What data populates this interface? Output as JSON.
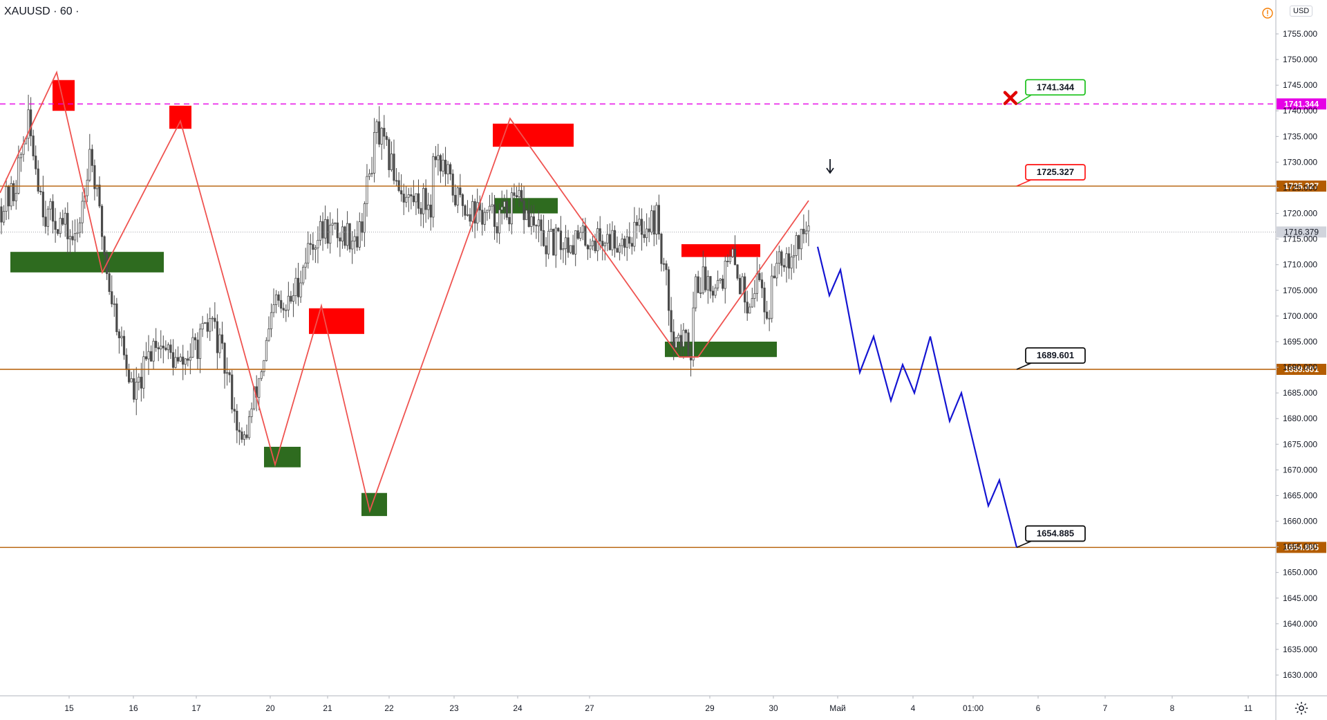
{
  "symbol": "XAUUSD · 60 ·",
  "currency": "USD",
  "colors": {
    "candle": "#4a4a4a",
    "zigzag": "#ef5350",
    "supply": "#ff0000",
    "demand": "#2e6b1f",
    "projection": "#1414d2",
    "level": "#b35c00",
    "resistance_dash": "#e600e6",
    "label_green": "#22c322",
    "label_red": "#ff1f1f",
    "label_black": "#111111"
  },
  "icons": {
    "settings": "gear-icon",
    "alert": "warning-icon",
    "invalidation": "cross-icon",
    "pointer": "arrow-down-icon"
  },
  "chart_data": {
    "type": "candlestick",
    "symbol": "XAUUSD",
    "timeframe": "60",
    "ylim": [
      1626,
      1759
    ],
    "y_ticks": [
      1630,
      1635,
      1640,
      1645,
      1650,
      1655,
      1660,
      1665,
      1670,
      1675,
      1680,
      1685,
      1690,
      1695,
      1700,
      1705,
      1710,
      1715,
      1720,
      1725,
      1730,
      1735,
      1740,
      1745,
      1750,
      1755
    ],
    "x_tick_labels": [
      "15",
      "16",
      "17",
      "20",
      "21",
      "22",
      "23",
      "24",
      "27",
      "29",
      "30",
      "Май",
      "4",
      "01:00",
      "6",
      "7",
      "8",
      "11"
    ],
    "last_price": "1716.379",
    "levels": [
      {
        "value": 1741.344,
        "label": "1741.344",
        "style": "dashed",
        "color": "#e600e6"
      },
      {
        "value": 1725.327,
        "label": "1725.327",
        "style": "solid",
        "color": "#b35c00"
      },
      {
        "value": 1689.601,
        "label": "1689.601",
        "style": "solid",
        "color": "#b35c00"
      },
      {
        "value": 1654.885,
        "label": "1654.885",
        "style": "solid",
        "color": "#b35c00"
      }
    ],
    "callouts": [
      {
        "text": "1741.344",
        "value": 1741.344,
        "color": "#22c322"
      },
      {
        "text": "1725.327",
        "value": 1725.327,
        "color": "#ff1f1f"
      },
      {
        "text": "1689.601",
        "value": 1689.601,
        "color": "#111111"
      },
      {
        "text": "1654.885",
        "value": 1654.885,
        "color": "#111111"
      }
    ],
    "zigzag": [
      [
        0,
        1724
      ],
      [
        82,
        1747.5
      ],
      [
        148,
        1708.5
      ],
      [
        261,
        1738
      ],
      [
        398,
        1671
      ],
      [
        465,
        1702
      ],
      [
        535,
        1662
      ],
      [
        738,
        1738.5
      ],
      [
        983,
        1692
      ],
      [
        1010,
        1692
      ],
      [
        1170,
        1722.5
      ]
    ],
    "projection": [
      [
        1183,
        1713.5
      ],
      [
        1200,
        1704
      ],
      [
        1216,
        1709
      ],
      [
        1244,
        1689
      ],
      [
        1264,
        1696
      ],
      [
        1289,
        1683.5
      ],
      [
        1306,
        1690.5
      ],
      [
        1323,
        1685
      ],
      [
        1346,
        1696
      ],
      [
        1374,
        1679.5
      ],
      [
        1391,
        1685
      ],
      [
        1430,
        1663
      ],
      [
        1446,
        1668
      ],
      [
        1471,
        1654.9
      ]
    ],
    "supply_zones": [
      [
        76,
        1746,
        108,
        1740
      ],
      [
        245,
        1741,
        277,
        1736.5
      ],
      [
        447,
        1701.5,
        527,
        1696.5
      ],
      [
        713,
        1737.5,
        830,
        1733
      ],
      [
        986,
        1714,
        1100,
        1711.5
      ]
    ],
    "demand_zones": [
      [
        15,
        1712.5,
        237,
        1708.5
      ],
      [
        382,
        1674.5,
        435,
        1670.5
      ],
      [
        523,
        1665.5,
        560,
        1661
      ],
      [
        716,
        1723,
        807,
        1720
      ],
      [
        962,
        1695,
        1124,
        1692
      ]
    ],
    "candles": {
      "start_x": 2,
      "step": 3.55,
      "count": 330,
      "seed": 42,
      "anchors": [
        [
          0,
          1721
        ],
        [
          20,
          1724
        ],
        [
          40,
          1738
        ],
        [
          65,
          1720
        ],
        [
          90,
          1718
        ],
        [
          110,
          1714
        ],
        [
          130,
          1733
        ],
        [
          158,
          1706
        ],
        [
          185,
          1689
        ],
        [
          195,
          1684
        ],
        [
          225,
          1696
        ],
        [
          260,
          1690
        ],
        [
          305,
          1700
        ],
        [
          300,
          1697
        ],
        [
          335,
          1685
        ],
        [
          350,
          1674
        ],
        [
          372,
          1686
        ],
        [
          400,
          1703
        ],
        [
          410,
          1700
        ],
        [
          430,
          1706
        ],
        [
          448,
          1714
        ],
        [
          470,
          1717
        ],
        [
          490,
          1716
        ],
        [
          520,
          1716
        ],
        [
          545,
          1736
        ],
        [
          587,
          1723
        ],
        [
          624,
          1722
        ],
        [
          628,
          1733
        ],
        [
          660,
          1723
        ],
        [
          690,
          1720
        ],
        [
          720,
          1719
        ],
        [
          750,
          1722
        ],
        [
          790,
          1714
        ],
        [
          840,
          1715
        ],
        [
          900,
          1715
        ],
        [
          950,
          1719
        ],
        [
          975,
          1696
        ],
        [
          1000,
          1694
        ],
        [
          1005,
          1707
        ],
        [
          1040,
          1707
        ],
        [
          1060,
          1711
        ],
        [
          1080,
          1703
        ],
        [
          1100,
          1708
        ],
        [
          1110,
          1699
        ],
        [
          1125,
          1713
        ],
        [
          1140,
          1712
        ],
        [
          1160,
          1716
        ],
        [
          1172,
          1717
        ]
      ]
    }
  }
}
